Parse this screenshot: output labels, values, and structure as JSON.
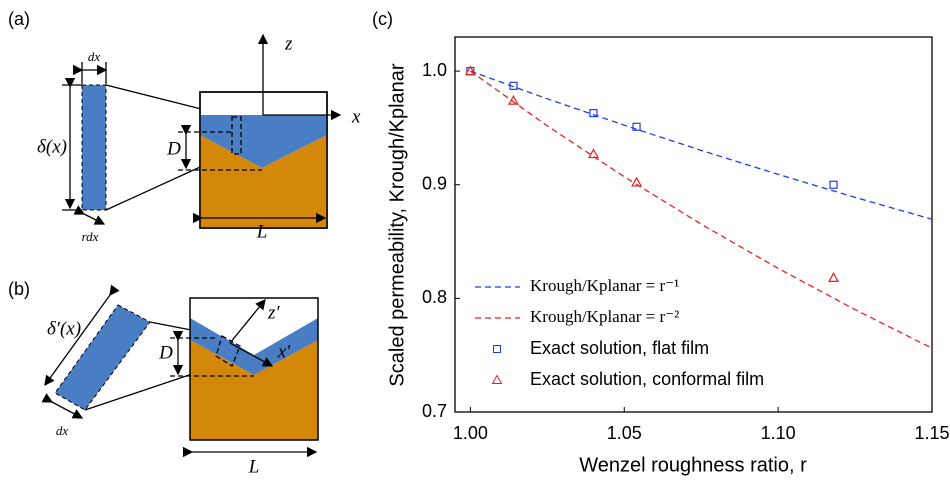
{
  "diagrams": {
    "a": {
      "panel": "(a)",
      "strip_width": "dx",
      "thickness": "δ(x)",
      "tilted_width": "rdx",
      "z_axis": "z",
      "x_axis": "x",
      "depth": "D",
      "length": "L"
    },
    "b": {
      "panel": "(b)",
      "thickness": "δ′(x)",
      "width": "dx",
      "z_axis": "z′",
      "x_axis": "x′",
      "depth": "D",
      "length": "L"
    }
  },
  "chart_data": {
    "type": "line",
    "panel": "(c)",
    "x_label": "Wenzel roughness ratio, r",
    "y_label": "Scaled permeability, Krough/Kplanar",
    "xlim": [
      0.995,
      1.15
    ],
    "ylim": [
      0.7,
      1.03
    ],
    "xticks": [
      {
        "value": 1.0,
        "label": "1.00"
      },
      {
        "value": 1.05,
        "label": "1.05"
      },
      {
        "value": 1.1,
        "label": "1.10"
      },
      {
        "value": 1.15,
        "label": "1.15"
      }
    ],
    "yticks": [
      {
        "value": 0.7,
        "label": "0.7"
      },
      {
        "value": 0.8,
        "label": "0.8"
      },
      {
        "value": 0.9,
        "label": "0.9"
      },
      {
        "value": 1.0,
        "label": "1.0"
      }
    ],
    "legend": "lower left",
    "series": [
      {
        "name": "Krough/Kplanar = r⁻¹",
        "color": "#1f3fe0",
        "dashed": true,
        "marker": null,
        "x": [
          1.0,
          1.025,
          1.05,
          1.075,
          1.1,
          1.125,
          1.15
        ],
        "values": [
          1.0,
          0.9756,
          0.9524,
          0.9302,
          0.9091,
          0.8889,
          0.8696
        ]
      },
      {
        "name": "Krough/Kplanar = r⁻²",
        "color": "#e52222",
        "dashed": true,
        "marker": null,
        "x": [
          1.0,
          1.025,
          1.05,
          1.075,
          1.1,
          1.125,
          1.15
        ],
        "values": [
          1.0,
          0.9518,
          0.907,
          0.8653,
          0.8264,
          0.7901,
          0.7561
        ]
      },
      {
        "name": "Exact solution, flat film",
        "color": "#1f3fe0",
        "dashed": false,
        "marker": "square",
        "x": [
          1.0,
          1.014,
          1.04,
          1.054,
          1.118
        ],
        "values": [
          1.0,
          0.987,
          0.963,
          0.951,
          0.9
        ]
      },
      {
        "name": "Exact solution, conformal film",
        "color": "#e52222",
        "dashed": false,
        "marker": "triangle",
        "x": [
          1.0,
          1.014,
          1.04,
          1.054,
          1.118
        ],
        "values": [
          1.0,
          0.974,
          0.927,
          0.902,
          0.818
        ]
      }
    ]
  }
}
